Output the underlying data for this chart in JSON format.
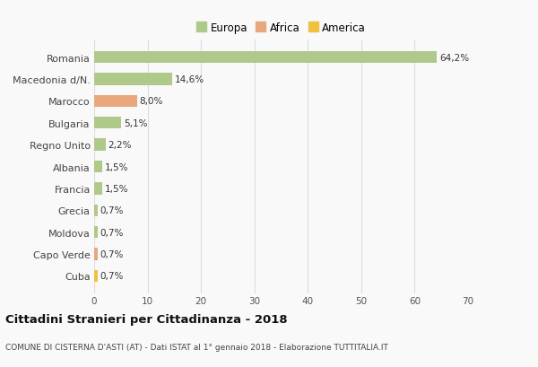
{
  "categories": [
    "Romania",
    "Macedonia d/N.",
    "Marocco",
    "Bulgaria",
    "Regno Unito",
    "Albania",
    "Francia",
    "Grecia",
    "Moldova",
    "Capo Verde",
    "Cuba"
  ],
  "values": [
    64.2,
    14.6,
    8.0,
    5.1,
    2.2,
    1.5,
    1.5,
    0.7,
    0.7,
    0.7,
    0.7
  ],
  "labels": [
    "64,2%",
    "14,6%",
    "8,0%",
    "5,1%",
    "2,2%",
    "1,5%",
    "1,5%",
    "0,7%",
    "0,7%",
    "0,7%",
    "0,7%"
  ],
  "colors": [
    "#aec98a",
    "#aec98a",
    "#e8a87c",
    "#aec98a",
    "#aec98a",
    "#aec98a",
    "#aec98a",
    "#aec98a",
    "#aec98a",
    "#e8a87c",
    "#f0c040"
  ],
  "continent": [
    "Europa",
    "Europa",
    "Africa",
    "Europa",
    "Europa",
    "Europa",
    "Europa",
    "Europa",
    "Europa",
    "Africa",
    "America"
  ],
  "legend_colors": {
    "Europa": "#aec98a",
    "Africa": "#e8a87c",
    "America": "#f0c040"
  },
  "xlim": [
    0,
    70
  ],
  "xticks": [
    0,
    10,
    20,
    30,
    40,
    50,
    60,
    70
  ],
  "title": "Cittadini Stranieri per Cittadinanza - 2018",
  "subtitle": "COMUNE DI CISTERNA D'ASTI (AT) - Dati ISTAT al 1° gennaio 2018 - Elaborazione TUTTITALIA.IT",
  "background_color": "#f9f9f9",
  "grid_color": "#dddddd",
  "bar_height": 0.55
}
